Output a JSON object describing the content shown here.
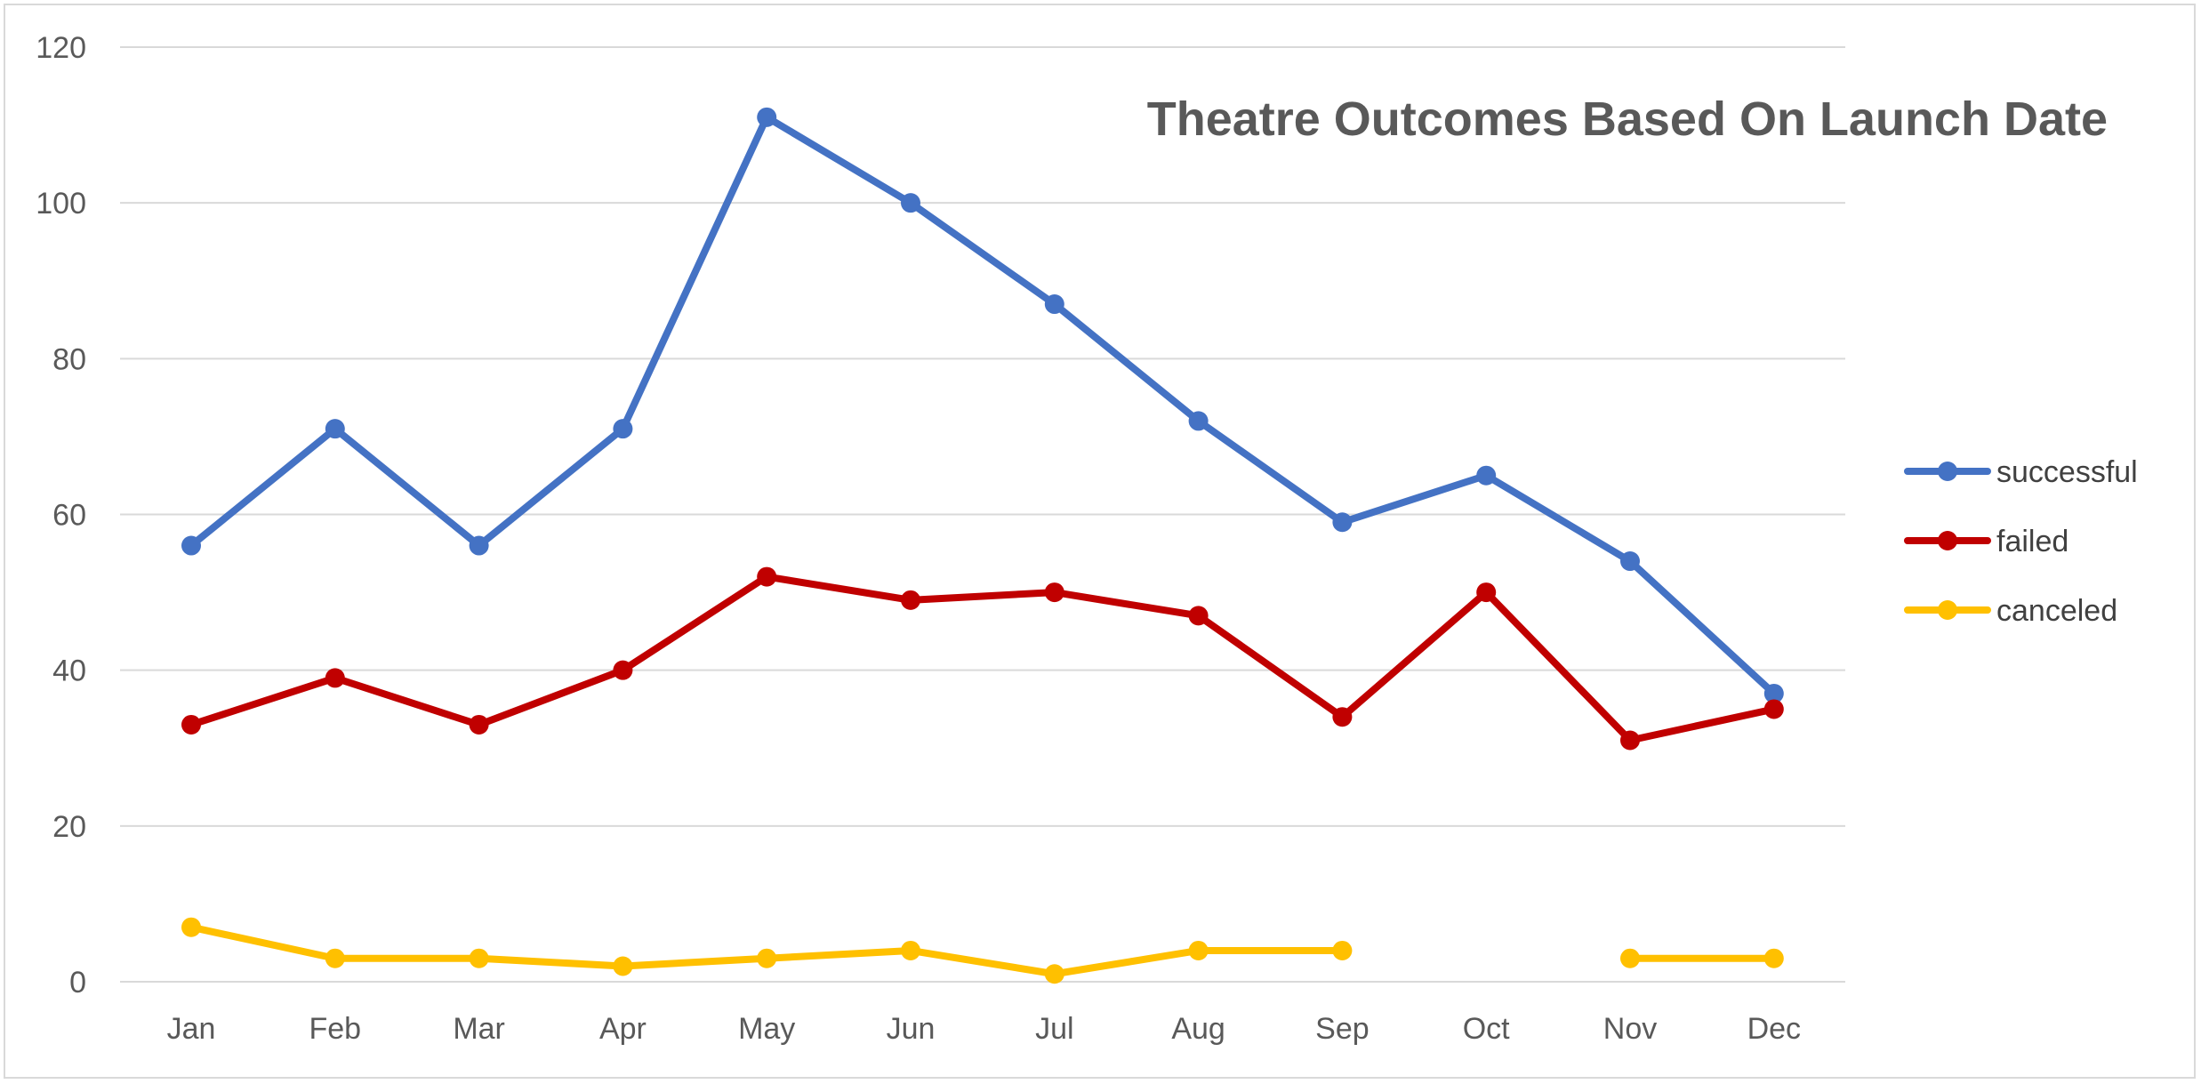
{
  "chart_data": {
    "type": "line",
    "title": "Theatre Outcomes Based On Launch Date",
    "xlabel": "",
    "ylabel": "",
    "categories": [
      "Jan",
      "Feb",
      "Mar",
      "Apr",
      "May",
      "Jun",
      "Jul",
      "Aug",
      "Sep",
      "Oct",
      "Nov",
      "Dec"
    ],
    "ylim": [
      0,
      120
    ],
    "yticks": [
      0,
      20,
      40,
      60,
      80,
      100,
      120
    ],
    "grid": true,
    "legend_position": "right",
    "series": [
      {
        "name": "successful",
        "color": "#4472C4",
        "values": [
          56,
          71,
          56,
          71,
          111,
          100,
          87,
          72,
          59,
          65,
          54,
          37
        ]
      },
      {
        "name": "failed",
        "color": "#C00000",
        "values": [
          33,
          39,
          33,
          40,
          52,
          49,
          50,
          47,
          34,
          50,
          31,
          35
        ]
      },
      {
        "name": "canceled",
        "color": "#FFC000",
        "values": [
          7,
          3,
          3,
          2,
          3,
          4,
          1,
          4,
          4,
          null,
          3,
          3
        ]
      }
    ]
  }
}
